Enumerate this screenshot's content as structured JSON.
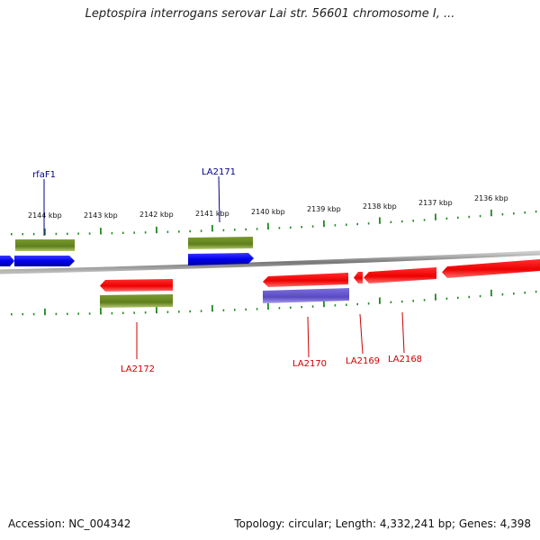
{
  "title": "Leptospira interrogans serovar Lai str. 56601 chromosome I, ...",
  "scale_labels": [
    "2144 kbp",
    "2143 kbp",
    "2142 kbp",
    "2141 kbp",
    "2140 kbp",
    "2139 kbp",
    "2138 kbp",
    "2137 kbp",
    "2136 kbp"
  ],
  "genes_top": [
    {
      "label": "rfaF1",
      "color": "#00008b"
    },
    {
      "label": "LA2171",
      "color": "#00008b"
    }
  ],
  "genes_bottom": [
    {
      "label": "LA2172",
      "color": "#cc0000"
    },
    {
      "label": "LA2170",
      "color": "#cc0000"
    },
    {
      "label": "LA2169",
      "color": "#cc0000"
    },
    {
      "label": "LA2168",
      "color": "#cc0000"
    }
  ],
  "colors": {
    "forward_cds": "#0000ee",
    "reverse_cds": "#ee0000",
    "feature_olive": "#6b8e23",
    "feature_purple": "#6a5acd",
    "backbone": "#999999",
    "ticks": "#228b22"
  },
  "footer": {
    "accession": "Accession: NC_004342",
    "topology": "Topology: circular; Length: 4,332,241 bp; Genes: 4,398"
  }
}
